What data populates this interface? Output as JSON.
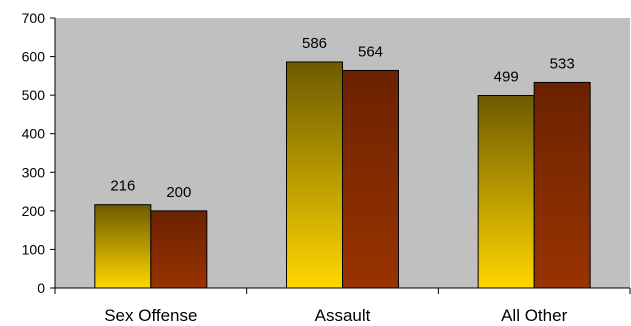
{
  "chart_data": {
    "type": "bar",
    "categories": [
      "Sex Offense",
      "Assault",
      "All Other"
    ],
    "series": [
      {
        "values": [
          216,
          586,
          499
        ],
        "color_top": "#6e5a00",
        "color_bottom": "#ffd700"
      },
      {
        "values": [
          200,
          564,
          533
        ],
        "color_top": "#6b2200",
        "color_bottom": "#993300"
      }
    ],
    "ylim": [
      0,
      700
    ],
    "yticks": [
      0,
      100,
      200,
      300,
      400,
      500,
      600,
      700
    ],
    "ytick_labels": [
      "0",
      "100",
      "200",
      "300",
      "400",
      "500",
      "600",
      "700"
    ],
    "grid": false,
    "legend": false,
    "plot_background": "#c0c0c0",
    "title": "",
    "xlabel": "",
    "ylabel": ""
  }
}
